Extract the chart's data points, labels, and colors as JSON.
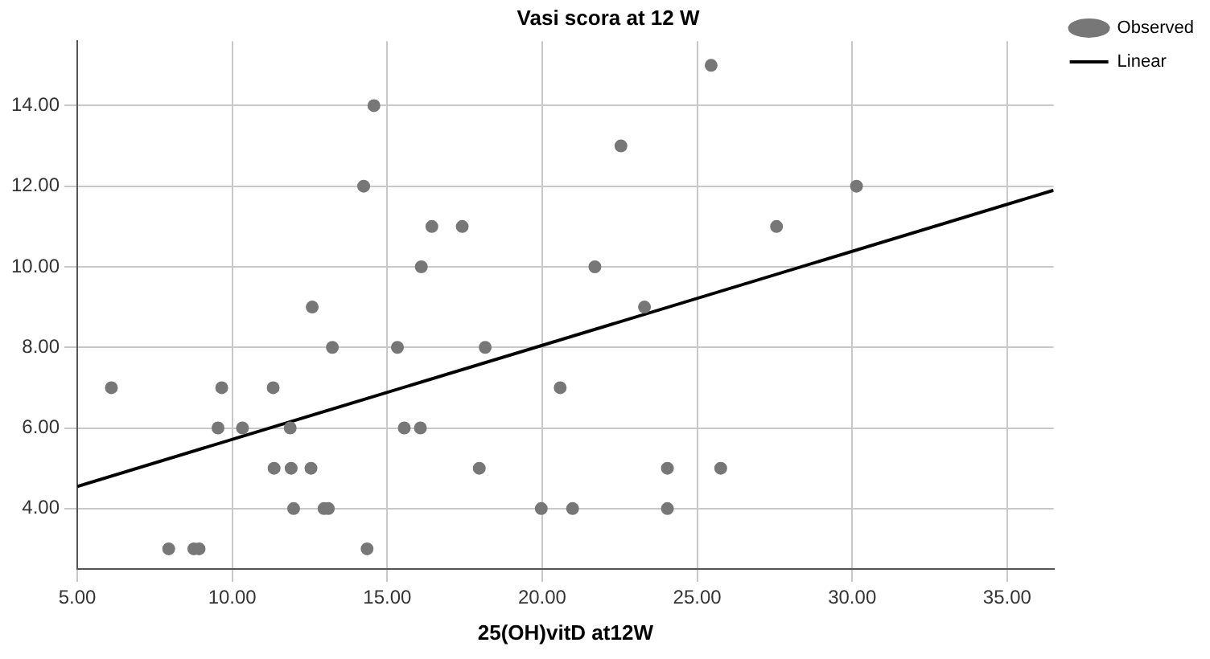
{
  "chart_data": {
    "type": "scatter",
    "title": "Vasi scora at 12 W",
    "xlabel": "25(OH)vitD at12W",
    "xlim": [
      5,
      36.5
    ],
    "ylim": [
      2.5,
      15.6
    ],
    "xticks": [
      {
        "value": 5,
        "label": "5.00"
      },
      {
        "value": 10,
        "label": "10.00"
      },
      {
        "value": 15,
        "label": "15.00"
      },
      {
        "value": 20,
        "label": "20.00"
      },
      {
        "value": 25,
        "label": "25.00"
      },
      {
        "value": 30,
        "label": "30.00"
      },
      {
        "value": 35,
        "label": "35.00"
      }
    ],
    "yticks": [
      {
        "value": 4,
        "label": "4.00"
      },
      {
        "value": 6,
        "label": "6.00"
      },
      {
        "value": 8,
        "label": "8.00"
      },
      {
        "value": 10,
        "label": "10.00"
      },
      {
        "value": 12,
        "label": "12.00"
      },
      {
        "value": 14,
        "label": "14.00"
      }
    ],
    "grid": true,
    "legend": "top right",
    "marker": "circle",
    "series": [
      {
        "name": "Observed",
        "color": "#777777",
        "x": [
          6.1,
          7.95,
          8.76,
          8.93,
          9.54,
          9.66,
          10.33,
          11.32,
          11.35,
          11.87,
          11.9,
          11.98,
          12.54,
          12.58,
          12.96,
          13.1,
          13.23,
          14.35,
          14.24,
          14.57,
          15.33,
          15.55,
          16.07,
          16.1,
          16.44,
          17.42,
          17.97,
          18.16,
          19.97,
          20.58,
          20.98,
          21.7,
          22.54,
          23.3,
          24.04,
          24.04,
          25.45,
          25.76,
          27.56,
          30.14
        ],
        "values": [
          7,
          3,
          3,
          3,
          6,
          7,
          6,
          7,
          5,
          6,
          5,
          4,
          5,
          9,
          4,
          4,
          8,
          3,
          12,
          14,
          8,
          6,
          6,
          10,
          11,
          11,
          5,
          8,
          4,
          7,
          4,
          10,
          13,
          9,
          5,
          4,
          15,
          5,
          11,
          12
        ]
      },
      {
        "name": "Linear",
        "type": "line",
        "color": "#000000",
        "marker": "none",
        "x": [
          5,
          36.5
        ],
        "values": [
          4.55,
          11.9
        ]
      }
    ]
  }
}
